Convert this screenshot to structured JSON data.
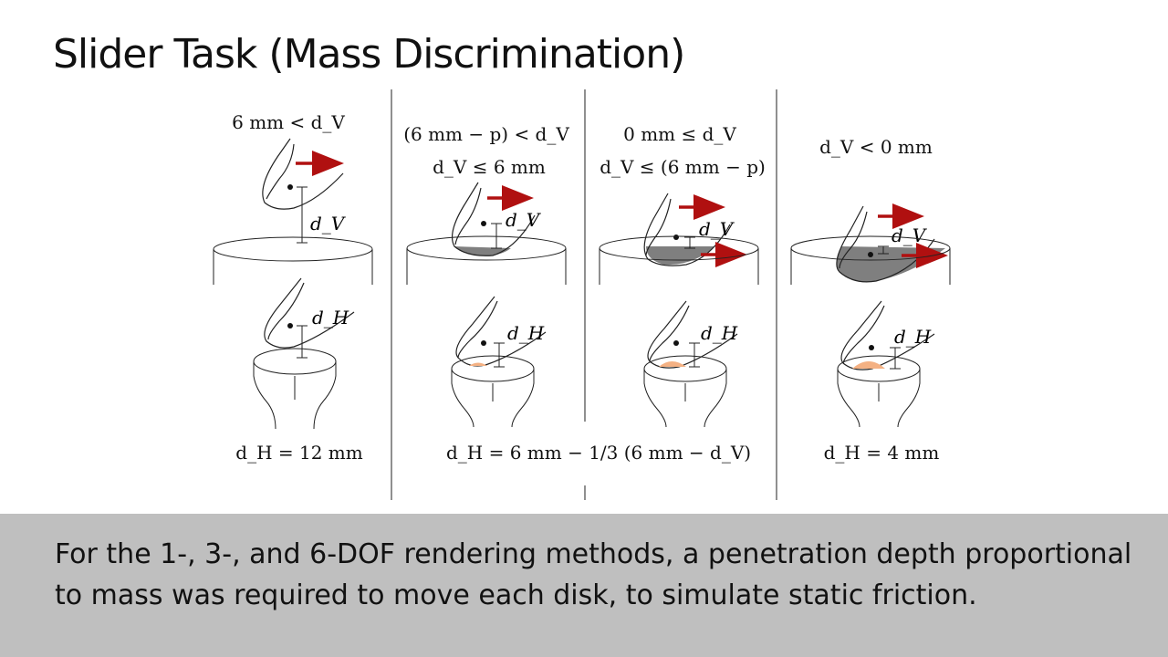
{
  "slide": {
    "title": "Slider Task (Mass Discrimination)",
    "caption_lines": [
      "For the 1-, 3-, and 6-DOF rendering methods, a penetration depth proportional",
      "to mass was required to move each disk, to simulate static friction."
    ]
  },
  "diagram": {
    "panels": [
      {
        "condition": [
          "6 mm < d_V"
        ],
        "formula": "d_H = 12 mm"
      },
      {
        "condition": [
          "(6 mm − p) < d_V",
          "d_V ≤ 6 mm"
        ],
        "formula": ""
      },
      {
        "condition": [
          "0 mm ≤ d_V",
          "d_V ≤ (6 mm − p)"
        ],
        "formula": ""
      },
      {
        "condition": [
          "d_V < 0 mm"
        ],
        "formula": "d_H = 4 mm"
      }
    ],
    "shared_formula": "d_H = 6 mm − 1/3 (6 mm − d_V)",
    "labels": {
      "dV": "d_V",
      "dH": "d_H"
    },
    "colors": {
      "arrow": "#b01010",
      "penetration": "#7f7f7f",
      "contact": "#f4b183"
    }
  }
}
